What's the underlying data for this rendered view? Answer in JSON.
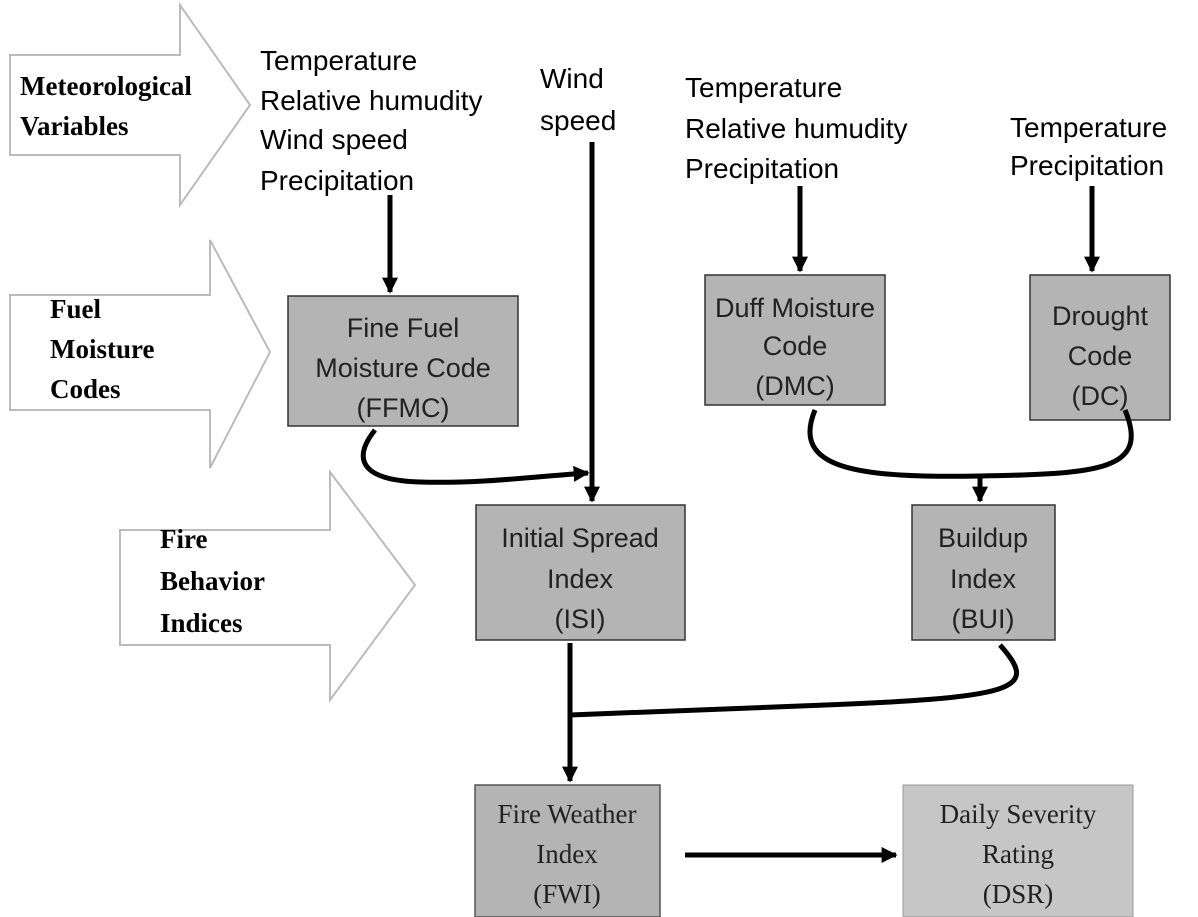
{
  "categories": [
    {
      "lines": [
        "Meteorological",
        "Variables"
      ]
    },
    {
      "lines": [
        "Fuel",
        "Moisture",
        "Codes"
      ]
    },
    {
      "lines": [
        "Fire",
        "Behavior",
        "Indices"
      ]
    }
  ],
  "inputs": [
    {
      "lines": [
        "Temperature",
        "Relative humudity",
        "Wind speed",
        "Precipitation"
      ]
    },
    {
      "lines": [
        "Wind",
        "speed"
      ]
    },
    {
      "lines": [
        "Temperature",
        "Relative humudity",
        "Precipitation"
      ]
    },
    {
      "lines": [
        "Temperature",
        "Precipitation"
      ]
    }
  ],
  "nodes": [
    {
      "lines": [
        "Fine Fuel",
        "Moisture Code",
        "(FFMC)"
      ]
    },
    {
      "lines": [
        "Duff Moisture",
        "Code",
        "(DMC)"
      ]
    },
    {
      "lines": [
        "Drought",
        "Code",
        "(DC)"
      ]
    },
    {
      "lines": [
        "Initial Spread",
        "Index",
        "(ISI)"
      ]
    },
    {
      "lines": [
        "Buildup",
        "Index",
        "(BUI)"
      ]
    },
    {
      "lines": [
        "Fire Weather",
        "Index",
        "(FWI)"
      ]
    },
    {
      "lines": [
        "Daily Severity",
        "Rating",
        "(DSR)"
      ]
    }
  ]
}
